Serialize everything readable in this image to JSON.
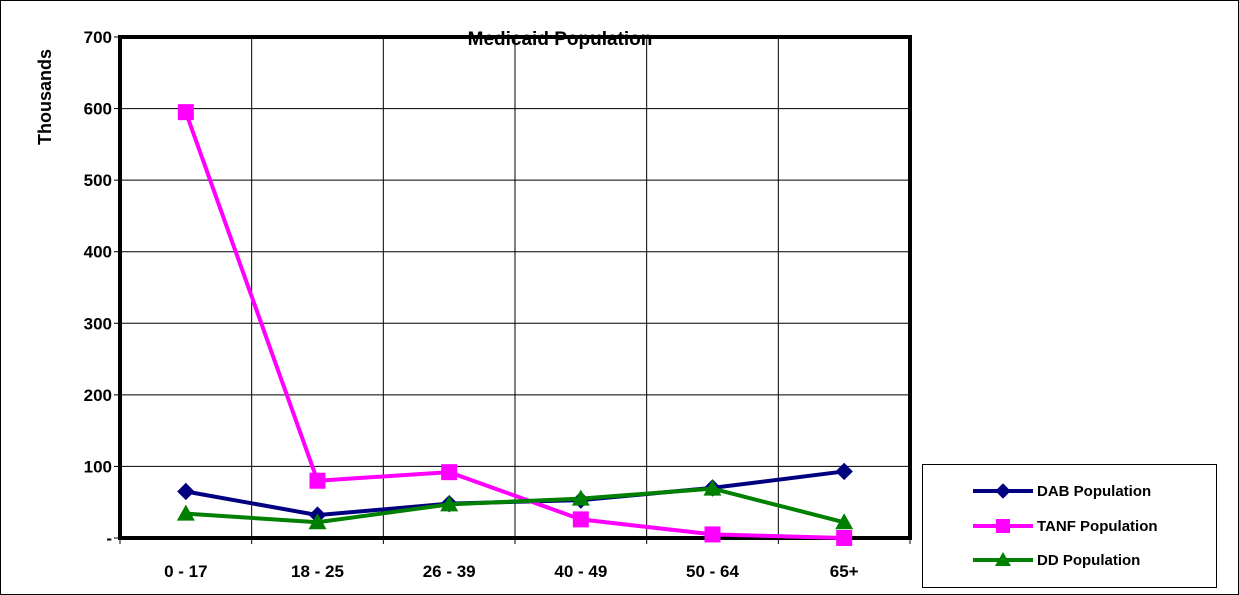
{
  "chart_data": {
    "type": "line",
    "title": "Medicaid Population",
    "xlabel": "",
    "ylabel": "Thousands",
    "categories": [
      "0 - 17",
      "18 - 25",
      "26 - 39",
      "40 - 49",
      "50 - 64",
      "65+"
    ],
    "ylim": [
      0,
      700
    ],
    "yticks": [
      0,
      100,
      200,
      300,
      400,
      500,
      600,
      700
    ],
    "ytick_labels": [
      "-",
      "100",
      "200",
      "300",
      "400",
      "500",
      "600",
      "700"
    ],
    "grid": true,
    "legend_position": "bottom-right",
    "series": [
      {
        "name": "DAB Population",
        "color": "#000080",
        "marker": "diamond",
        "values": [
          65,
          32,
          48,
          53,
          70,
          93
        ]
      },
      {
        "name": "TANF Population",
        "color": "#FF00FF",
        "marker": "square",
        "values": [
          595,
          80,
          92,
          26,
          5,
          0
        ]
      },
      {
        "name": "DD Population",
        "color": "#008000",
        "marker": "triangle",
        "values": [
          34,
          22,
          47,
          55,
          69,
          22
        ]
      }
    ]
  }
}
